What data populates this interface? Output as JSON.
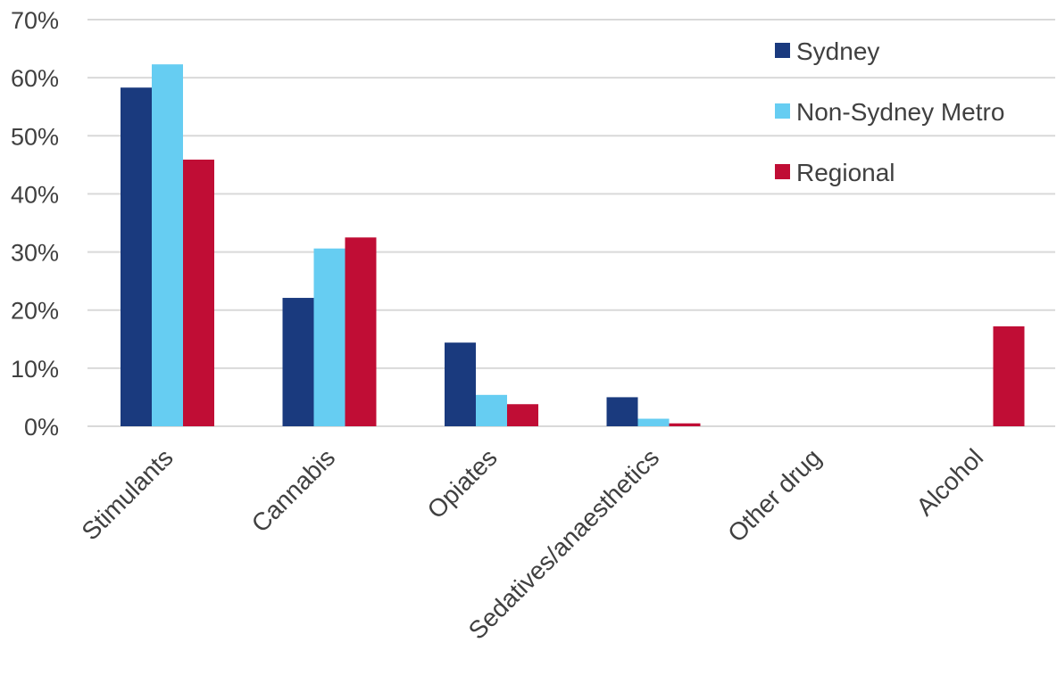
{
  "chart_data": {
    "type": "bar",
    "categories": [
      "Stimulants",
      "Cannabis",
      "Opiates",
      "Sedatives/anaesthetics",
      "Other drug",
      "Alcohol"
    ],
    "series": [
      {
        "name": "Sydney",
        "color": "#1a3a7e",
        "values": [
          58.3,
          22.1,
          14.4,
          5.0,
          0,
          0
        ]
      },
      {
        "name": "Non-Sydney Metro",
        "color": "#66cdf2",
        "values": [
          62.3,
          30.6,
          5.4,
          1.3,
          0,
          0
        ]
      },
      {
        "name": "Regional",
        "color": "#c00d35",
        "values": [
          45.9,
          32.5,
          3.8,
          0.5,
          0,
          17.2
        ]
      }
    ],
    "ylim": [
      0,
      70
    ],
    "yticks": [
      0,
      10,
      20,
      30,
      40,
      50,
      60,
      70
    ],
    "ytick_labels": [
      "0%",
      "10%",
      "20%",
      "30%",
      "40%",
      "50%",
      "60%",
      "70%"
    ],
    "legend_position": "top-right",
    "grid": true
  }
}
